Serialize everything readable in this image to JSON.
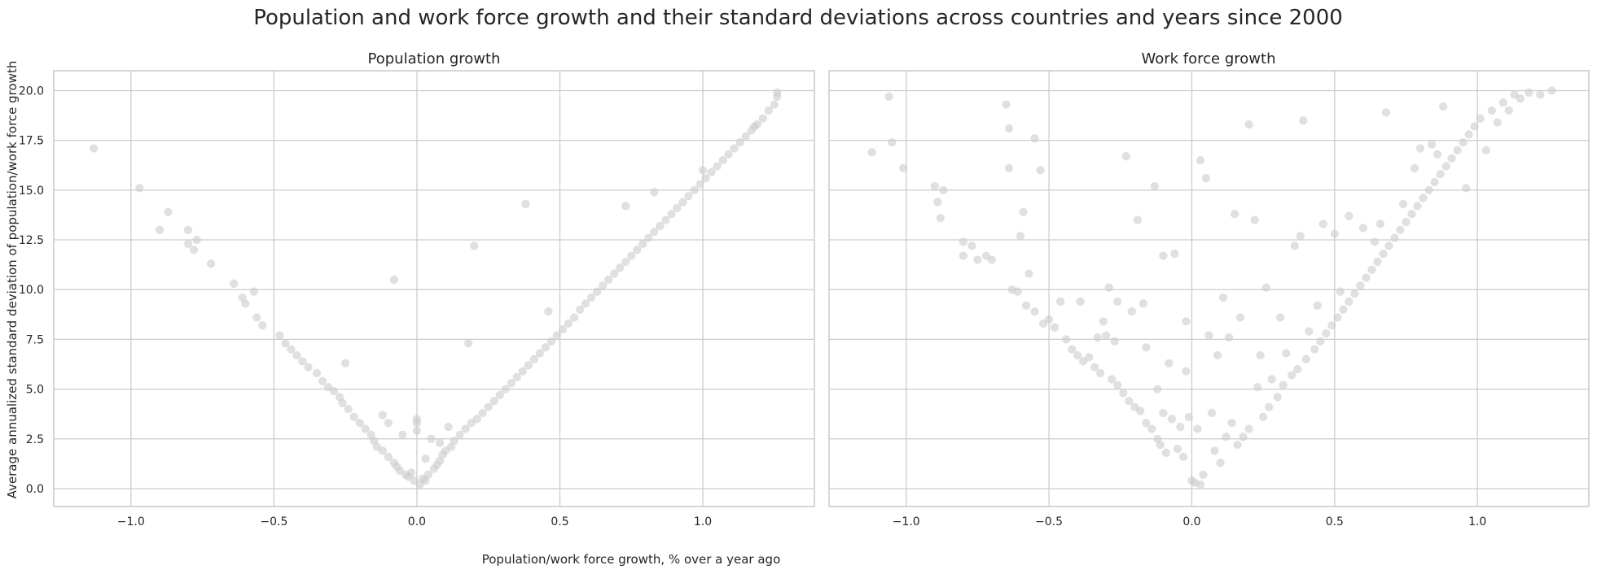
{
  "figure": {
    "title": "Population and work force growth and their standard deviations across countries and years since 2000",
    "xlabel": "Population/work force growth, % over a year ago",
    "ylabel": "Average annualized standard deviation of population/work force growth"
  },
  "colors": {
    "points": "#cccccc",
    "grid": "#cccccc",
    "frame": "#cccccc",
    "text": "#262626"
  },
  "chart_data": [
    {
      "type": "scatter",
      "title": "Population growth",
      "xlim": [
        -1.27,
        1.39
      ],
      "ylim": [
        -0.9,
        21.0
      ],
      "xticks": [
        -1.0,
        -0.5,
        0.0,
        0.5,
        1.0
      ],
      "xtick_labels": [
        "−1.0",
        "−0.5",
        "0.0",
        "0.5",
        "1.0"
      ],
      "yticks": [
        0.0,
        2.5,
        5.0,
        7.5,
        10.0,
        12.5,
        15.0,
        17.5,
        20.0
      ],
      "ytick_labels": [
        "0.0",
        "2.5",
        "5.0",
        "7.5",
        "10.0",
        "12.5",
        "15.0",
        "17.5",
        "20.0"
      ],
      "grid": true,
      "points": [
        [
          -1.13,
          17.1
        ],
        [
          -0.97,
          15.1
        ],
        [
          -0.9,
          13.0
        ],
        [
          -0.87,
          13.9
        ],
        [
          -0.8,
          13.0
        ],
        [
          -0.8,
          12.3
        ],
        [
          -0.78,
          12.0
        ],
        [
          -0.77,
          12.5
        ],
        [
          -0.72,
          11.3
        ],
        [
          -0.64,
          10.3
        ],
        [
          -0.61,
          9.6
        ],
        [
          -0.6,
          9.3
        ],
        [
          -0.57,
          9.9
        ],
        [
          -0.56,
          8.6
        ],
        [
          -0.54,
          8.2
        ],
        [
          -0.48,
          7.7
        ],
        [
          -0.46,
          7.3
        ],
        [
          -0.44,
          7.0
        ],
        [
          -0.42,
          6.7
        ],
        [
          -0.4,
          6.4
        ],
        [
          -0.38,
          6.1
        ],
        [
          -0.35,
          5.8
        ],
        [
          -0.33,
          5.4
        ],
        [
          -0.31,
          5.1
        ],
        [
          -0.29,
          4.9
        ],
        [
          -0.27,
          4.6
        ],
        [
          -0.26,
          4.3
        ],
        [
          -0.25,
          6.3
        ],
        [
          -0.24,
          4.0
        ],
        [
          -0.22,
          3.6
        ],
        [
          -0.2,
          3.3
        ],
        [
          -0.18,
          3.0
        ],
        [
          -0.16,
          2.7
        ],
        [
          -0.15,
          2.4
        ],
        [
          -0.14,
          2.1
        ],
        [
          -0.12,
          3.7
        ],
        [
          -0.12,
          1.9
        ],
        [
          -0.1,
          1.6
        ],
        [
          -0.1,
          3.3
        ],
        [
          -0.08,
          1.3
        ],
        [
          -0.08,
          10.5
        ],
        [
          -0.07,
          1.1
        ],
        [
          -0.06,
          0.9
        ],
        [
          -0.05,
          2.7
        ],
        [
          -0.04,
          0.7
        ],
        [
          -0.03,
          0.6
        ],
        [
          -0.02,
          0.8
        ],
        [
          -0.01,
          0.4
        ],
        [
          0.0,
          3.5
        ],
        [
          0.0,
          3.3
        ],
        [
          0.0,
          2.9
        ],
        [
          0.01,
          0.2
        ],
        [
          0.02,
          0.5
        ],
        [
          0.03,
          1.5
        ],
        [
          0.03,
          0.4
        ],
        [
          0.04,
          0.7
        ],
        [
          0.05,
          2.5
        ],
        [
          0.06,
          1.0
        ],
        [
          0.07,
          1.2
        ],
        [
          0.08,
          1.4
        ],
        [
          0.08,
          2.3
        ],
        [
          0.09,
          1.7
        ],
        [
          0.1,
          1.9
        ],
        [
          0.11,
          3.1
        ],
        [
          0.12,
          2.1
        ],
        [
          0.13,
          2.4
        ],
        [
          0.15,
          2.7
        ],
        [
          0.17,
          3.0
        ],
        [
          0.18,
          7.3
        ],
        [
          0.19,
          3.3
        ],
        [
          0.2,
          12.2
        ],
        [
          0.21,
          3.5
        ],
        [
          0.23,
          3.8
        ],
        [
          0.25,
          4.1
        ],
        [
          0.27,
          4.4
        ],
        [
          0.29,
          4.7
        ],
        [
          0.31,
          5.0
        ],
        [
          0.33,
          5.3
        ],
        [
          0.35,
          5.6
        ],
        [
          0.37,
          5.9
        ],
        [
          0.38,
          14.3
        ],
        [
          0.39,
          6.2
        ],
        [
          0.41,
          6.5
        ],
        [
          0.43,
          6.8
        ],
        [
          0.45,
          7.1
        ],
        [
          0.46,
          8.9
        ],
        [
          0.47,
          7.4
        ],
        [
          0.49,
          7.7
        ],
        [
          0.51,
          8.0
        ],
        [
          0.53,
          8.3
        ],
        [
          0.55,
          8.6
        ],
        [
          0.57,
          9.0
        ],
        [
          0.59,
          9.3
        ],
        [
          0.61,
          9.6
        ],
        [
          0.63,
          9.9
        ],
        [
          0.65,
          10.2
        ],
        [
          0.67,
          10.5
        ],
        [
          0.69,
          10.8
        ],
        [
          0.71,
          11.1
        ],
        [
          0.73,
          14.2
        ],
        [
          0.73,
          11.4
        ],
        [
          0.75,
          11.7
        ],
        [
          0.77,
          12.0
        ],
        [
          0.79,
          12.3
        ],
        [
          0.81,
          12.6
        ],
        [
          0.83,
          12.9
        ],
        [
          0.83,
          14.9
        ],
        [
          0.85,
          13.2
        ],
        [
          0.87,
          13.5
        ],
        [
          0.89,
          13.8
        ],
        [
          0.91,
          14.1
        ],
        [
          0.93,
          14.4
        ],
        [
          0.95,
          14.7
        ],
        [
          0.97,
          15.0
        ],
        [
          0.99,
          15.3
        ],
        [
          1.0,
          16.0
        ],
        [
          1.01,
          15.6
        ],
        [
          1.03,
          15.9
        ],
        [
          1.05,
          16.2
        ],
        [
          1.07,
          16.5
        ],
        [
          1.09,
          16.8
        ],
        [
          1.11,
          17.1
        ],
        [
          1.13,
          17.4
        ],
        [
          1.15,
          17.7
        ],
        [
          1.17,
          18.0
        ],
        [
          1.18,
          18.2
        ],
        [
          1.19,
          18.3
        ],
        [
          1.21,
          18.6
        ],
        [
          1.23,
          19.0
        ],
        [
          1.25,
          19.3
        ],
        [
          1.26,
          19.7
        ],
        [
          1.26,
          19.9
        ]
      ]
    },
    {
      "type": "scatter",
      "title": "Work force growth",
      "xlim": [
        -1.27,
        1.39
      ],
      "ylim": [
        -0.9,
        21.0
      ],
      "xticks": [
        -1.0,
        -0.5,
        0.0,
        0.5,
        1.0
      ],
      "xtick_labels": [
        "−1.0",
        "−0.5",
        "0.0",
        "0.5",
        "1.0"
      ],
      "yticks": [
        0.0,
        2.5,
        5.0,
        7.5,
        10.0,
        12.5,
        15.0,
        17.5,
        20.0
      ],
      "grid": true,
      "points": [
        [
          -1.12,
          16.9
        ],
        [
          -1.06,
          19.7
        ],
        [
          -1.05,
          17.4
        ],
        [
          -1.01,
          16.1
        ],
        [
          -0.9,
          15.2
        ],
        [
          -0.89,
          14.4
        ],
        [
          -0.88,
          13.6
        ],
        [
          -0.87,
          15.0
        ],
        [
          -0.8,
          12.4
        ],
        [
          -0.8,
          11.7
        ],
        [
          -0.77,
          12.2
        ],
        [
          -0.75,
          11.5
        ],
        [
          -0.72,
          11.7
        ],
        [
          -0.7,
          11.5
        ],
        [
          -0.65,
          19.3
        ],
        [
          -0.64,
          18.1
        ],
        [
          -0.64,
          16.1
        ],
        [
          -0.63,
          10.0
        ],
        [
          -0.61,
          9.9
        ],
        [
          -0.6,
          12.7
        ],
        [
          -0.59,
          13.9
        ],
        [
          -0.58,
          9.2
        ],
        [
          -0.57,
          10.8
        ],
        [
          -0.55,
          8.9
        ],
        [
          -0.55,
          17.6
        ],
        [
          -0.53,
          16.0
        ],
        [
          -0.52,
          8.3
        ],
        [
          -0.5,
          8.5
        ],
        [
          -0.48,
          8.1
        ],
        [
          -0.46,
          9.4
        ],
        [
          -0.44,
          7.5
        ],
        [
          -0.42,
          7.0
        ],
        [
          -0.4,
          6.7
        ],
        [
          -0.39,
          9.4
        ],
        [
          -0.38,
          6.4
        ],
        [
          -0.36,
          6.6
        ],
        [
          -0.34,
          6.1
        ],
        [
          -0.33,
          7.6
        ],
        [
          -0.32,
          5.8
        ],
        [
          -0.31,
          8.4
        ],
        [
          -0.3,
          7.7
        ],
        [
          -0.29,
          10.1
        ],
        [
          -0.28,
          5.5
        ],
        [
          -0.27,
          7.4
        ],
        [
          -0.26,
          9.4
        ],
        [
          -0.26,
          5.2
        ],
        [
          -0.24,
          4.8
        ],
        [
          -0.23,
          16.7
        ],
        [
          -0.22,
          4.4
        ],
        [
          -0.21,
          8.9
        ],
        [
          -0.2,
          4.1
        ],
        [
          -0.19,
          13.5
        ],
        [
          -0.18,
          3.9
        ],
        [
          -0.17,
          9.3
        ],
        [
          -0.16,
          3.3
        ],
        [
          -0.16,
          7.1
        ],
        [
          -0.14,
          3.0
        ],
        [
          -0.13,
          15.2
        ],
        [
          -0.12,
          5.0
        ],
        [
          -0.12,
          2.5
        ],
        [
          -0.11,
          2.2
        ],
        [
          -0.1,
          3.8
        ],
        [
          -0.1,
          11.7
        ],
        [
          -0.09,
          1.8
        ],
        [
          -0.08,
          6.3
        ],
        [
          -0.07,
          3.5
        ],
        [
          -0.06,
          11.8
        ],
        [
          -0.05,
          2.0
        ],
        [
          -0.04,
          3.1
        ],
        [
          -0.03,
          1.6
        ],
        [
          -0.02,
          5.9
        ],
        [
          -0.02,
          8.4
        ],
        [
          -0.01,
          3.6
        ],
        [
          0.0,
          0.4
        ],
        [
          0.01,
          0.3
        ],
        [
          0.02,
          3.0
        ],
        [
          0.03,
          16.5
        ],
        [
          0.03,
          0.2
        ],
        [
          0.04,
          0.7
        ],
        [
          0.05,
          15.6
        ],
        [
          0.06,
          7.7
        ],
        [
          0.07,
          3.8
        ],
        [
          0.08,
          1.9
        ],
        [
          0.09,
          6.7
        ],
        [
          0.1,
          1.3
        ],
        [
          0.11,
          9.6
        ],
        [
          0.12,
          2.6
        ],
        [
          0.13,
          7.6
        ],
        [
          0.14,
          3.3
        ],
        [
          0.15,
          13.8
        ],
        [
          0.16,
          2.2
        ],
        [
          0.17,
          8.6
        ],
        [
          0.18,
          2.6
        ],
        [
          0.2,
          3.0
        ],
        [
          0.2,
          18.3
        ],
        [
          0.22,
          13.5
        ],
        [
          0.23,
          5.1
        ],
        [
          0.24,
          6.7
        ],
        [
          0.25,
          3.6
        ],
        [
          0.26,
          10.1
        ],
        [
          0.27,
          4.1
        ],
        [
          0.28,
          5.5
        ],
        [
          0.3,
          4.6
        ],
        [
          0.31,
          8.6
        ],
        [
          0.32,
          5.2
        ],
        [
          0.33,
          6.8
        ],
        [
          0.35,
          5.7
        ],
        [
          0.36,
          12.2
        ],
        [
          0.37,
          6.0
        ],
        [
          0.38,
          12.7
        ],
        [
          0.39,
          18.5
        ],
        [
          0.4,
          6.5
        ],
        [
          0.41,
          7.9
        ],
        [
          0.43,
          7.0
        ],
        [
          0.44,
          9.2
        ],
        [
          0.45,
          7.4
        ],
        [
          0.46,
          13.3
        ],
        [
          0.47,
          7.8
        ],
        [
          0.49,
          8.2
        ],
        [
          0.5,
          12.8
        ],
        [
          0.51,
          8.6
        ],
        [
          0.52,
          9.9
        ],
        [
          0.53,
          9.0
        ],
        [
          0.55,
          13.7
        ],
        [
          0.55,
          9.4
        ],
        [
          0.57,
          9.8
        ],
        [
          0.59,
          10.2
        ],
        [
          0.6,
          13.1
        ],
        [
          0.61,
          10.6
        ],
        [
          0.63,
          11.0
        ],
        [
          0.64,
          12.4
        ],
        [
          0.65,
          11.4
        ],
        [
          0.66,
          13.3
        ],
        [
          0.67,
          11.8
        ],
        [
          0.68,
          18.9
        ],
        [
          0.69,
          12.2
        ],
        [
          0.71,
          12.6
        ],
        [
          0.73,
          13.0
        ],
        [
          0.74,
          14.3
        ],
        [
          0.75,
          13.4
        ],
        [
          0.77,
          13.8
        ],
        [
          0.78,
          16.1
        ],
        [
          0.79,
          14.2
        ],
        [
          0.8,
          17.1
        ],
        [
          0.81,
          14.6
        ],
        [
          0.83,
          15.0
        ],
        [
          0.84,
          17.3
        ],
        [
          0.85,
          15.4
        ],
        [
          0.86,
          16.8
        ],
        [
          0.87,
          15.8
        ],
        [
          0.88,
          19.2
        ],
        [
          0.89,
          16.2
        ],
        [
          0.91,
          16.6
        ],
        [
          0.93,
          17.0
        ],
        [
          0.95,
          17.4
        ],
        [
          0.96,
          15.1
        ],
        [
          0.97,
          17.8
        ],
        [
          0.99,
          18.2
        ],
        [
          1.01,
          18.6
        ],
        [
          1.03,
          17.0
        ],
        [
          1.05,
          19.0
        ],
        [
          1.07,
          18.4
        ],
        [
          1.09,
          19.4
        ],
        [
          1.11,
          19.0
        ],
        [
          1.13,
          19.8
        ],
        [
          1.15,
          19.6
        ],
        [
          1.18,
          19.9
        ],
        [
          1.22,
          19.8
        ],
        [
          1.26,
          20.0
        ]
      ]
    }
  ]
}
